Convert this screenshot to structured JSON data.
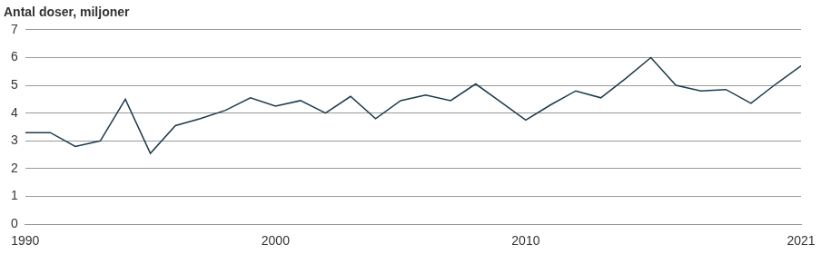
{
  "chart_data": {
    "type": "line",
    "title": "Antal doser, miljoner",
    "x": [
      1990,
      1991,
      1992,
      1993,
      1994,
      1995,
      1996,
      1997,
      1998,
      1999,
      2000,
      2001,
      2002,
      2003,
      2004,
      2005,
      2006,
      2007,
      2008,
      2009,
      2010,
      2011,
      2012,
      2013,
      2014,
      2015,
      2016,
      2017,
      2018,
      2019,
      2020,
      2021
    ],
    "values": [
      3.3,
      3.3,
      2.8,
      3.0,
      4.5,
      2.55,
      3.55,
      3.8,
      4.1,
      4.55,
      4.25,
      4.45,
      4.0,
      4.6,
      3.8,
      4.45,
      4.65,
      4.45,
      5.05,
      4.4,
      3.75,
      4.3,
      4.8,
      4.55,
      5.25,
      6.0,
      5.0,
      4.8,
      4.85,
      4.35,
      5.05,
      5.7
    ],
    "color": "#1e3a4c",
    "xlim": [
      1990,
      2021
    ],
    "xticks": [
      1990,
      2000,
      2010,
      2021
    ],
    "ylim": [
      0,
      7
    ],
    "yticks": [
      0,
      1,
      2,
      3,
      4,
      5,
      6,
      7
    ],
    "grid": true
  }
}
